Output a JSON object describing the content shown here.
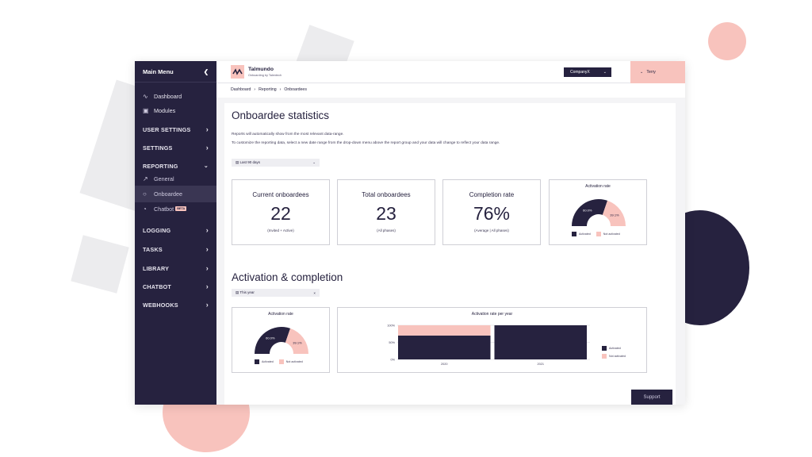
{
  "colors": {
    "navy": "#26223f",
    "pink": "#f8c3bd",
    "grey_bg": "#f4f4f6"
  },
  "sidebar": {
    "title": "Main Menu",
    "items": [
      {
        "label": "Dashboard",
        "icon": "activity-icon",
        "type": "link"
      },
      {
        "label": "Modules",
        "icon": "cube-icon",
        "type": "link"
      },
      {
        "label": "USER SETTINGS",
        "type": "section",
        "expanded": false
      },
      {
        "label": "SETTINGS",
        "type": "section",
        "expanded": false
      },
      {
        "label": "REPORTING",
        "type": "section",
        "expanded": true
      },
      {
        "label": "General",
        "icon": "trend-icon",
        "type": "sub"
      },
      {
        "label": "Onboardee",
        "icon": "person-icon",
        "type": "sub",
        "active": true
      },
      {
        "label": "Chatbot",
        "icon": "chat-icon",
        "type": "sub",
        "badge": "BETA"
      },
      {
        "label": "LOGGING",
        "type": "section",
        "expanded": false
      },
      {
        "label": "TASKS",
        "type": "section",
        "expanded": false
      },
      {
        "label": "LIBRARY",
        "type": "section",
        "expanded": false
      },
      {
        "label": "CHATBOT",
        "type": "section",
        "expanded": false
      },
      {
        "label": "WEBHOOKS",
        "type": "section",
        "expanded": false
      }
    ]
  },
  "header": {
    "brand_name": "Talmundo",
    "brand_sub": "Onboarding by Talentech",
    "company": "CompanyX",
    "user": "Terry"
  },
  "breadcrumb": [
    "Dashboard",
    "Reporting",
    "Onboardees"
  ],
  "main": {
    "title": "Onboardee statistics",
    "desc1": "Reports will automatically show from the most relevant data-range.",
    "desc2": "To customize the reporting data, select a new date range from the drop-down menu above the report group and your data will change to reflect your data range.",
    "date_range": "Last 90 days",
    "stats": [
      {
        "title": "Current onboardees",
        "value": "22",
        "sub": "(Invited + Active)"
      },
      {
        "title": "Total onboardees",
        "value": "23",
        "sub": "(All phases)"
      },
      {
        "title": "Completion rate",
        "value": "76%",
        "sub": "(Average | All phases)"
      }
    ],
    "activation_card": {
      "title": "Activation rate",
      "activated_label": "60.0%",
      "not_activated_label": "39.1%",
      "legend_activated": "Activated",
      "legend_not_activated": "Not activated"
    },
    "section2_title": "Activation & completion",
    "date_range2": "This year",
    "activation_card2": {
      "title": "Activation rate",
      "activated_label": "60.0%",
      "not_activated_label": "39.1%",
      "legend_activated": "Activated",
      "legend_not_activated": "Not activated"
    },
    "bar_card": {
      "title": "Activation rate per year",
      "legend_activated": "Activated",
      "legend_not_activated": "Not activated"
    }
  },
  "chart_data": [
    {
      "type": "pie",
      "title": "Activation rate",
      "categories": [
        "Activated",
        "Not activated"
      ],
      "values": [
        60.0,
        39.1
      ]
    },
    {
      "type": "bar",
      "title": "Activation rate per year",
      "categories": [
        "2020",
        "2021"
      ],
      "series": [
        {
          "name": "Activated",
          "values": [
            70,
            100
          ]
        },
        {
          "name": "Not activated",
          "values": [
            30,
            0
          ]
        }
      ],
      "yticks": [
        "0%",
        "50%",
        "100%"
      ],
      "ylim": [
        0,
        100
      ]
    }
  ],
  "support_label": "Support"
}
